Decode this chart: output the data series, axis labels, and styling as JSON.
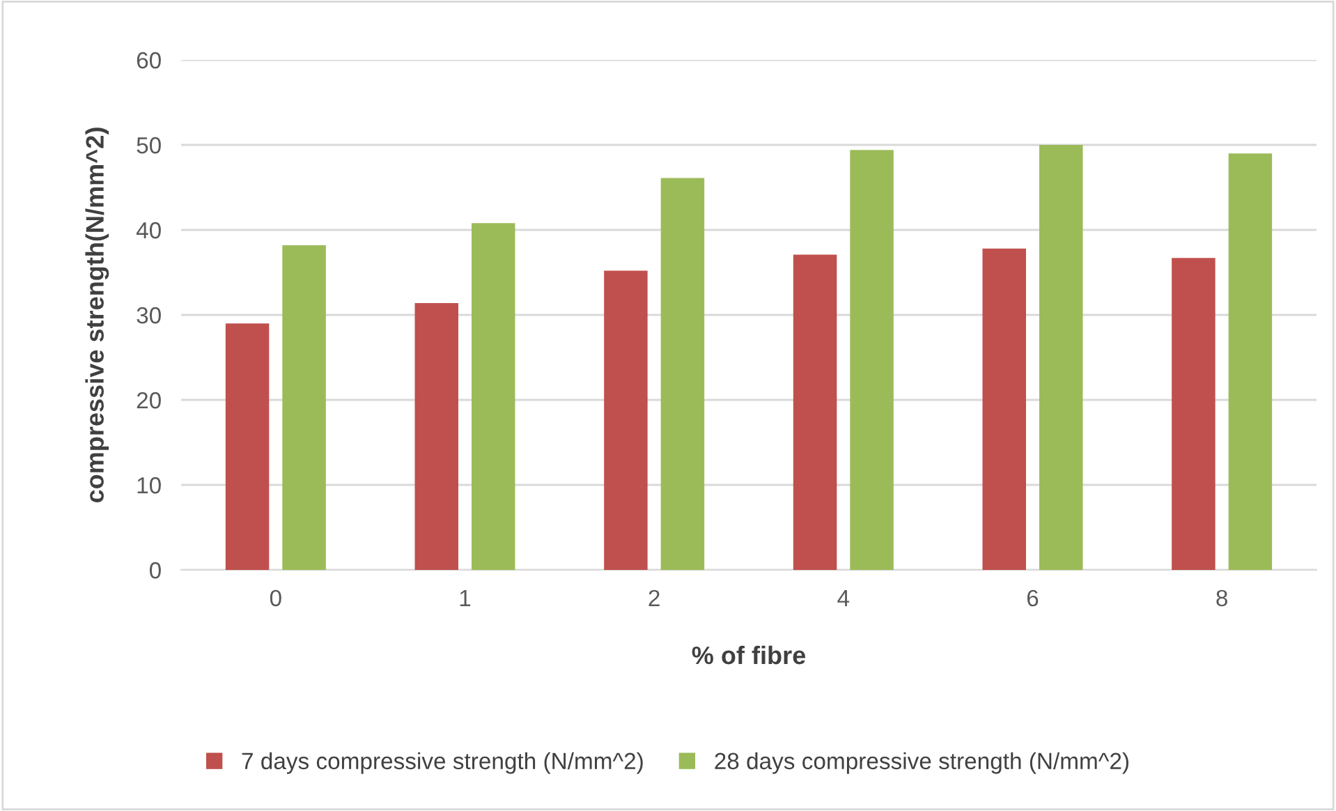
{
  "chart_data": {
    "type": "bar",
    "xlabel": "% of fibre",
    "ylabel": "compressive strength(N/mm^2)",
    "categories": [
      "0",
      "1",
      "2",
      "4",
      "6",
      "8"
    ],
    "series": [
      {
        "name": "7 days compressive strength (N/mm^2)",
        "color": "#c0504d",
        "values": [
          29.0,
          31.4,
          35.2,
          37.1,
          37.8,
          36.7
        ]
      },
      {
        "name": "28 days compressive strength (N/mm^2)",
        "color": "#9bbb59",
        "values": [
          38.2,
          40.8,
          46.1,
          49.4,
          50.0,
          49.0
        ]
      }
    ],
    "ylim": [
      0,
      60
    ],
    "yticks": [
      0,
      10,
      20,
      30,
      40,
      50,
      60
    ],
    "grid": "y",
    "legend": "bottom"
  }
}
